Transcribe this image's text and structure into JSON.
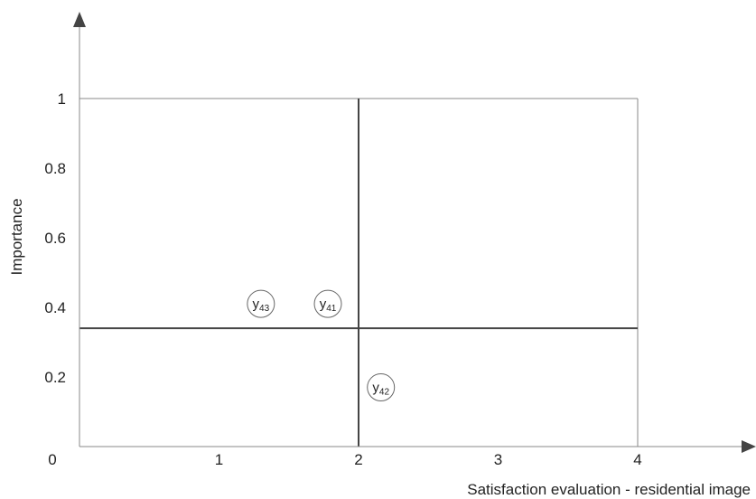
{
  "chart_data": {
    "type": "scatter",
    "title": "",
    "xlabel": "Satisfaction evaluation - residential image",
    "ylabel": "Importance",
    "xlim": [
      0,
      4
    ],
    "ylim": [
      0,
      1
    ],
    "x_ticks": [
      "1",
      "2",
      "3",
      "4"
    ],
    "y_ticks": [
      "0.2",
      "0.4",
      "0.6",
      "0.8",
      "1"
    ],
    "origin_label": "0",
    "quadrant_dividers": {
      "x": 2,
      "y": 0.34
    },
    "grid": false,
    "points": [
      {
        "base": "y",
        "sub": "43",
        "x": 1.3,
        "y": 0.41
      },
      {
        "base": "y",
        "sub": "41",
        "x": 1.78,
        "y": 0.41
      },
      {
        "base": "y",
        "sub": "42",
        "x": 2.16,
        "y": 0.17
      }
    ],
    "colors": {
      "axis": "#888888",
      "divider": "#444444",
      "frame": "#888888",
      "marker": "#666666"
    }
  }
}
